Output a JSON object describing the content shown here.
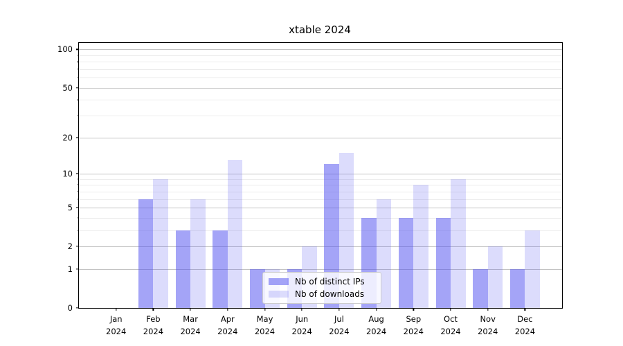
{
  "chart_data": {
    "type": "bar",
    "title": "xtable 2024",
    "categories": [
      "Jan",
      "Feb",
      "Mar",
      "Apr",
      "May",
      "Jun",
      "Jul",
      "Aug",
      "Sep",
      "Oct",
      "Nov",
      "Dec"
    ],
    "x_tick_year": "2024",
    "series": [
      {
        "name": "Nb of distinct IPs",
        "color": "rgba(80,80,240,0.52)",
        "color_hex_approx": "#a5a5f4",
        "values": [
          0,
          6,
          3,
          3,
          1,
          1,
          12,
          4,
          4,
          4,
          1,
          1
        ]
      },
      {
        "name": "Nb of downloads",
        "color": "rgba(80,80,240,0.20)",
        "color_hex_approx": "#dcdcfa",
        "values": [
          0,
          9,
          6,
          13,
          1,
          2,
          15,
          6,
          8,
          9,
          2,
          3
        ]
      }
    ],
    "yscale": "log1p",
    "ylim": [
      0,
      112
    ],
    "y_ticks_major": [
      0,
      1,
      2,
      5,
      10,
      20,
      50,
      100
    ],
    "y_gridlines_minor": [
      3,
      4,
      6,
      7,
      8,
      9,
      30,
      40,
      60,
      70,
      80,
      90
    ],
    "grid": "on",
    "legend_position": "lower center"
  }
}
